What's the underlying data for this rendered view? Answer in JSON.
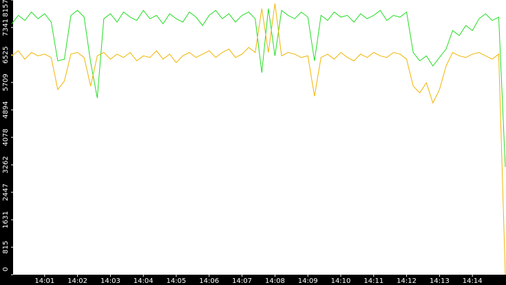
{
  "chart_data": {
    "type": "line",
    "x": [
      840.0,
      840.2,
      840.4,
      840.6,
      840.8,
      841.0,
      841.2,
      841.4,
      841.6,
      841.8,
      842.0,
      842.2,
      842.4,
      842.6,
      842.8,
      843.0,
      843.2,
      843.4,
      843.6,
      843.8,
      844.0,
      844.2,
      844.4,
      844.6,
      844.8,
      845.0,
      845.2,
      845.4,
      845.6,
      845.8,
      846.0,
      846.2,
      846.4,
      846.6,
      846.8,
      847.0,
      847.2,
      847.4,
      847.6,
      847.8,
      848.0,
      848.2,
      848.4,
      848.6,
      848.8,
      849.0,
      849.2,
      849.4,
      849.6,
      849.8,
      850.0,
      850.2,
      850.4,
      850.6,
      850.8,
      851.0,
      851.2,
      851.4,
      851.6,
      851.8,
      852.0,
      852.2,
      852.4,
      852.6,
      852.8,
      853.0,
      853.2,
      853.4,
      853.6,
      853.8,
      854.0,
      854.2,
      854.4,
      854.6,
      854.8,
      855.0
    ],
    "series": [
      {
        "color": "#22dd22",
        "values": [
          7450,
          7700,
          7550,
          7800,
          7600,
          7750,
          7500,
          6350,
          6400,
          7700,
          7850,
          7650,
          6300,
          5250,
          7600,
          7750,
          7500,
          7800,
          7650,
          7550,
          7850,
          7600,
          7700,
          7450,
          7750,
          7600,
          7500,
          7800,
          7650,
          7400,
          7700,
          7850,
          7600,
          7750,
          7500,
          7700,
          7800,
          7600,
          6000,
          7900,
          6500,
          7850,
          7700,
          7600,
          7800,
          7650,
          6350,
          7700,
          7550,
          7800,
          7650,
          7700,
          7500,
          7750,
          7600,
          7700,
          7850,
          7550,
          7700,
          7650,
          7800,
          6600,
          6350,
          6500,
          6200,
          6450,
          6700,
          7250,
          7100,
          7400,
          7250,
          7600,
          7750,
          7550,
          7650,
          3200
        ]
      },
      {
        "color": "#f0b400",
        "values": [
          6500,
          6650,
          6400,
          6600,
          6500,
          6550,
          6450,
          5500,
          5750,
          6550,
          6600,
          6450,
          5600,
          6500,
          6600,
          6400,
          6550,
          6450,
          6600,
          6350,
          6500,
          6450,
          6650,
          6400,
          6550,
          6300,
          6500,
          6600,
          6450,
          6550,
          6650,
          6450,
          6600,
          6700,
          6450,
          6550,
          6750,
          6600,
          7900,
          6600,
          8050,
          6500,
          6600,
          6550,
          6450,
          6500,
          5300,
          6450,
          6550,
          6400,
          6600,
          6450,
          6350,
          6550,
          6450,
          6600,
          6500,
          6450,
          6600,
          6550,
          6400,
          5600,
          5400,
          5700,
          5100,
          5500,
          6200,
          6600,
          6500,
          6450,
          6550,
          6600,
          6500,
          6400,
          6550,
          0
        ]
      }
    ],
    "xlim": [
      840,
      855
    ],
    "xticks": [
      {
        "value": 841,
        "label": "14:01"
      },
      {
        "value": 842,
        "label": "14:02"
      },
      {
        "value": 843,
        "label": "14:03"
      },
      {
        "value": 844,
        "label": "14:04"
      },
      {
        "value": 845,
        "label": "14:05"
      },
      {
        "value": 846,
        "label": "14:06"
      },
      {
        "value": 847,
        "label": "14:07"
      },
      {
        "value": 848,
        "label": "14:08"
      },
      {
        "value": 849,
        "label": "14:09"
      },
      {
        "value": 850,
        "label": "14:10"
      },
      {
        "value": 851,
        "label": "14:11"
      },
      {
        "value": 852,
        "label": "14:12"
      },
      {
        "value": 853,
        "label": "14:13"
      },
      {
        "value": 854,
        "label": "14:14"
      }
    ],
    "ylim": [
      0,
      8157
    ],
    "yticks": [
      0,
      815,
      1631,
      2447,
      3262,
      4078,
      4894,
      5709,
      6525,
      7341,
      8157
    ]
  }
}
